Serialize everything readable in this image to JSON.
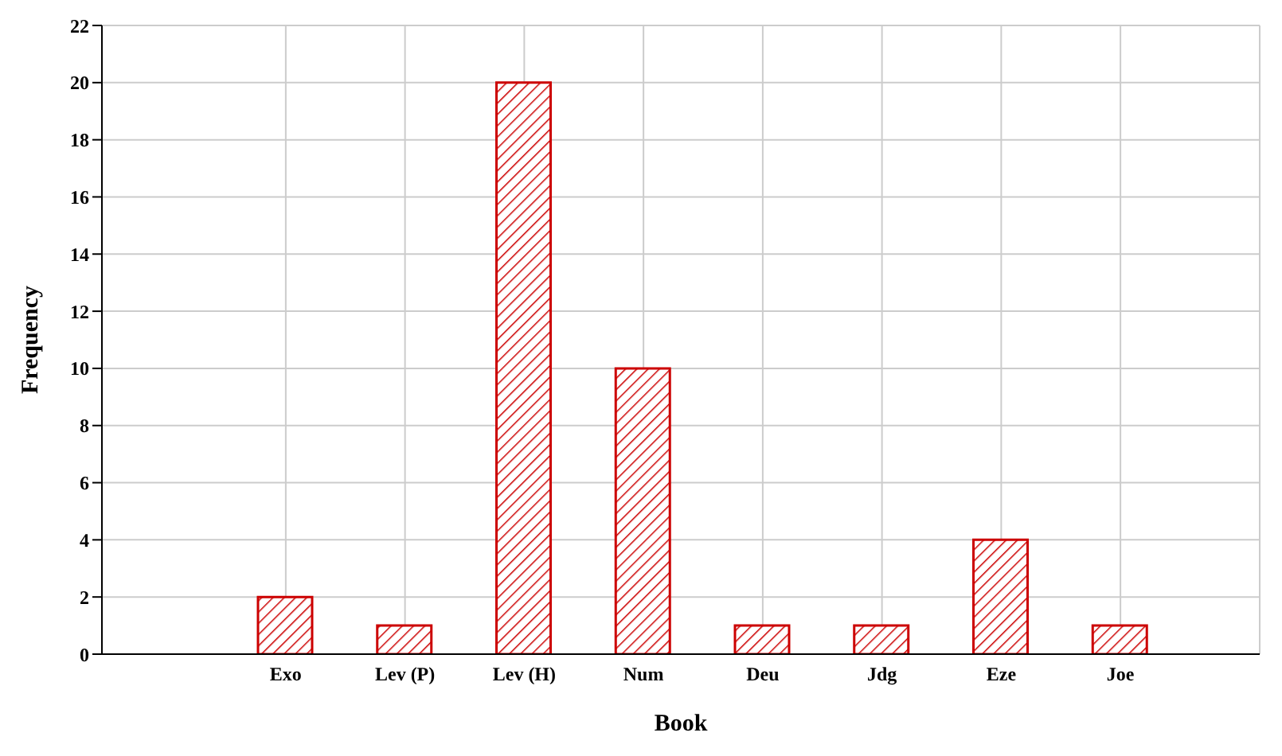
{
  "chart_data": {
    "type": "bar",
    "xlabel": "Book",
    "ylabel": "Frequency",
    "categories": [
      "Exo",
      "Lev (P)",
      "Lev (H)",
      "Num",
      "Deu",
      "Jdg",
      "Eze",
      "Joe"
    ],
    "values": [
      2,
      1,
      20,
      10,
      1,
      1,
      4,
      1
    ],
    "color": "#cc0000",
    "ylim": [
      0,
      22
    ],
    "yticks": [
      0,
      2,
      4,
      6,
      8,
      10,
      12,
      14,
      16,
      18,
      20,
      22
    ],
    "grid": true
  }
}
